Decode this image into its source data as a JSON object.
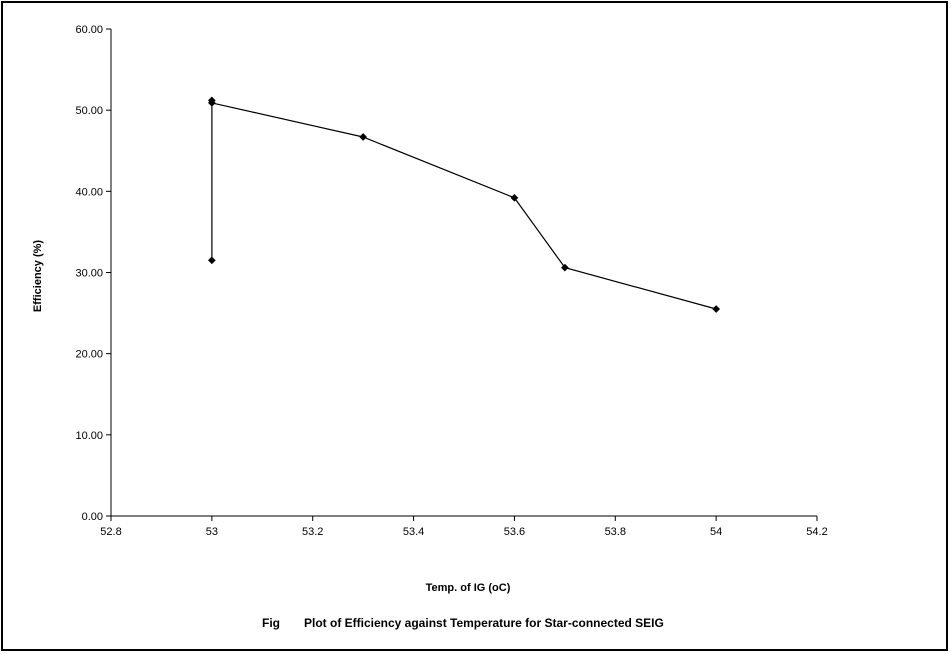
{
  "chart_data": {
    "type": "scatter",
    "title": "",
    "xlabel": "Temp. of IG (oC)",
    "ylabel": "Efficiency (%)",
    "xlim": [
      52.8,
      54.2
    ],
    "ylim": [
      0,
      60
    ],
    "x_ticks": [
      "52.8",
      "53",
      "53.2",
      "53.4",
      "53.6",
      "53.8",
      "54",
      "54.2"
    ],
    "y_ticks": [
      "0.00",
      "10.00",
      "20.00",
      "30.00",
      "40.00",
      "50.00",
      "60.00"
    ],
    "grid": false,
    "legend": "none",
    "line_color": "#000000",
    "marker": "diamond",
    "series": [
      {
        "x": [
          53.0,
          53.0,
          53.0,
          53.3,
          53.6,
          53.7,
          54.0
        ],
        "y": [
          31.5,
          51.2,
          50.9,
          46.7,
          39.2,
          30.6,
          25.5
        ]
      }
    ]
  },
  "caption": {
    "prefix": "Fig",
    "text": "Plot of Efficiency against Temperature for Star-connected SEIG"
  }
}
